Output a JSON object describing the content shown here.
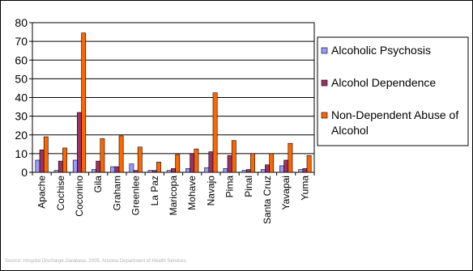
{
  "chart_data": {
    "type": "bar",
    "categories": [
      "Apache",
      "Cochise",
      "Coconino",
      "Gila",
      "Graham",
      "Greenlee",
      "La Paz",
      "Maricopa",
      "Mohave",
      "Navajo",
      "Pima",
      "Pinal",
      "Santa Cruz",
      "Yavapai",
      "Yuma"
    ],
    "series": [
      {
        "name": "Alcoholic Psychosis",
        "color": "#9999ff",
        "values": [
          6.5,
          1.0,
          6.5,
          1.5,
          3.0,
          4.5,
          1.0,
          1.0,
          2.0,
          2.5,
          2.0,
          1.0,
          1.5,
          3.5,
          1.5
        ]
      },
      {
        "name": "Alcohol Dependence",
        "color": "#993366",
        "values": [
          12.0,
          6.0,
          32.0,
          6.0,
          3.0,
          1.0,
          1.0,
          2.0,
          10.0,
          11.0,
          9.0,
          1.5,
          4.0,
          6.5,
          2.0
        ]
      },
      {
        "name": "Non-Dependent Abuse of Alcohol",
        "color": "#ff6600",
        "values": [
          19.0,
          13.0,
          74.5,
          18.0,
          19.5,
          13.5,
          5.5,
          9.5,
          12.5,
          42.5,
          17.0,
          10.0,
          10.0,
          15.5,
          9.0
        ]
      }
    ],
    "ylim": [
      0,
      80
    ],
    "yticks": [
      "0",
      "10",
      "20",
      "30",
      "40",
      "50",
      "60",
      "70",
      "80"
    ],
    "grid": true,
    "legend_position": "right"
  },
  "source": {
    "prefix": "Source: ",
    "database": "Hospital Discharge Database",
    "suffix": ", 2005. Arizona Department of Health Services."
  }
}
